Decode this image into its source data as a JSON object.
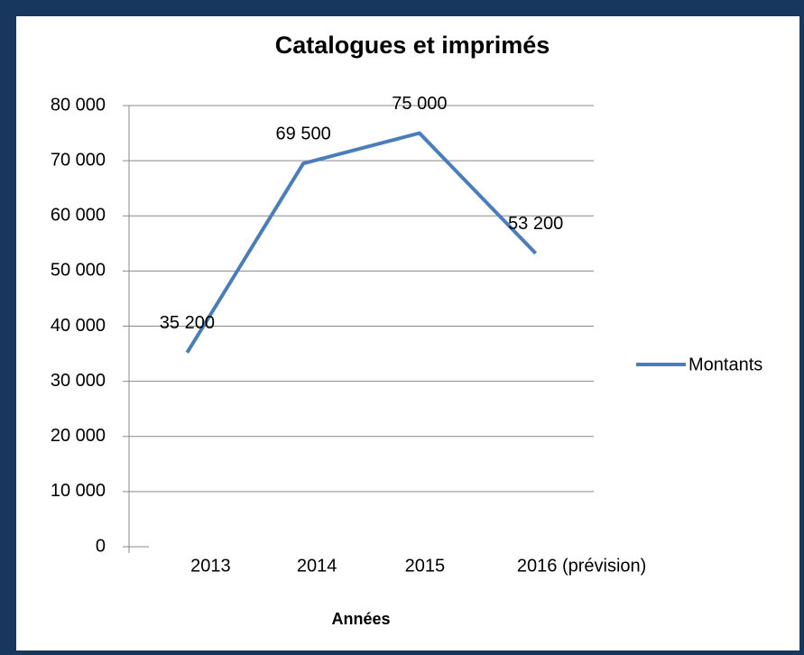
{
  "chart_data": {
    "type": "line",
    "title": "Catalogues et imprimés",
    "xlabel": "Années",
    "categories": [
      "2013",
      "2014",
      "2015",
      "2016 (prévision)"
    ],
    "series": [
      {
        "name": "Montants",
        "color": "#4a7ebb",
        "values": [
          35200,
          69500,
          75000,
          53200
        ],
        "value_labels": [
          "35 200",
          "69 500",
          "75 000",
          "53 200"
        ]
      }
    ],
    "ylim": [
      0,
      80000
    ],
    "yticks": [
      0,
      {
        "value": 10000,
        "label": "10 000"
      },
      {
        "value": 20000,
        "label": "20 000"
      },
      {
        "value": 30000,
        "label": "30 000"
      },
      {
        "value": 40000,
        "label": "40 000"
      },
      {
        "value": 50000,
        "label": "50 000"
      },
      {
        "value": 60000,
        "label": "60 000"
      },
      {
        "value": 70000,
        "label": "70 000"
      },
      {
        "value": 80000,
        "label": "80 000"
      }
    ],
    "grid": true,
    "legend": "right"
  }
}
